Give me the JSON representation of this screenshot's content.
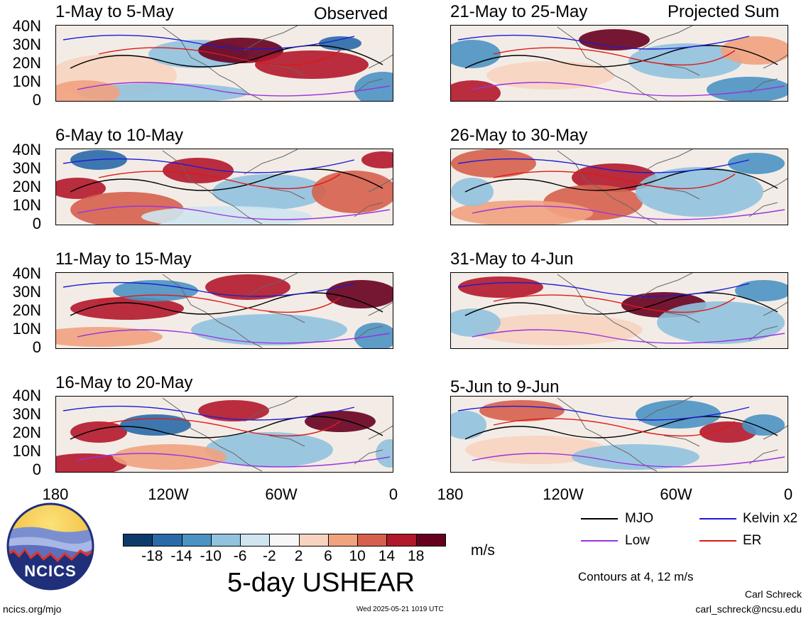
{
  "panels_left_header": "Observed",
  "panels_right_header": "Projected Sum",
  "panels": [
    {
      "id": "p1",
      "title": "1-May to 5-May"
    },
    {
      "id": "p2",
      "title": "6-May to 10-May"
    },
    {
      "id": "p3",
      "title": "11-May to 15-May"
    },
    {
      "id": "p4",
      "title": "16-May to 20-May"
    },
    {
      "id": "p5",
      "title": "21-May to 25-May"
    },
    {
      "id": "p6",
      "title": "26-May to 30-May"
    },
    {
      "id": "p7",
      "title": "31-May to 4-Jun"
    },
    {
      "id": "p8",
      "title": "5-Jun to 9-Jun"
    }
  ],
  "y_ticks": [
    "40N",
    "30N",
    "20N",
    "10N",
    "0"
  ],
  "x_ticks": [
    "180",
    "120W",
    "60W",
    "0"
  ],
  "colorbar": {
    "labels": [
      "-18",
      "-14",
      "-10",
      "-6",
      "-2",
      "2",
      "6",
      "10",
      "14",
      "18"
    ],
    "colors": [
      "#0c3a6b",
      "#2a6aa8",
      "#4b93c3",
      "#91c2de",
      "#cfe5f0",
      "#f7f7f7",
      "#f8d4c0",
      "#f1a27f",
      "#d6604d",
      "#b2182b",
      "#67001f"
    ],
    "units": "m/s"
  },
  "legend": {
    "mjo": "MJO",
    "kelvin": "Kelvin x2",
    "low": "Low",
    "er": "ER",
    "colors": {
      "mjo": "#000000",
      "kelvin": "#1a1ad6",
      "low": "#9a33e0",
      "er": "#e01818"
    }
  },
  "main_title": "5-day USHEAR",
  "contours_note": "Contours at 4, 12 m/s",
  "logo_text": "NCICS",
  "footer_left": "ncics.org/mjo",
  "footer_center": "Wed 2025-05-21 1019 UTC",
  "author": "Carl Schreck",
  "email": "carl_schreck@ncsu.edu"
}
